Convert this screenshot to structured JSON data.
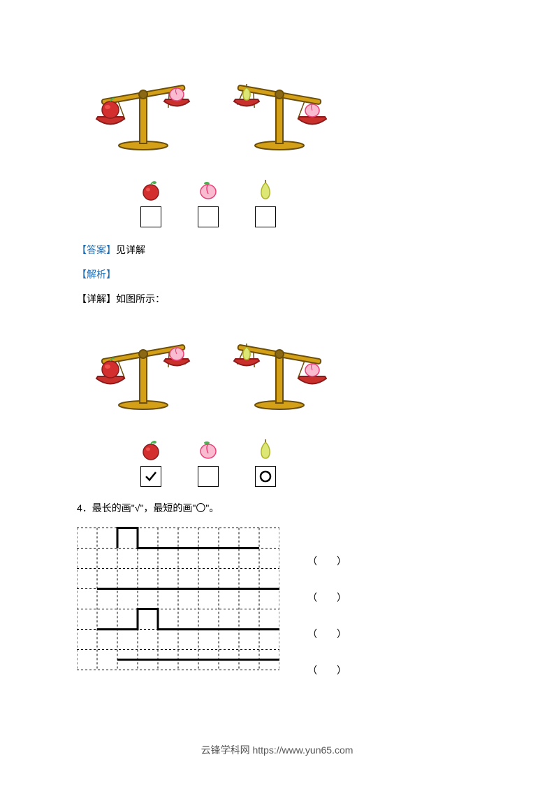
{
  "colors": {
    "scale_stem": "#d4a017",
    "scale_dark": "#8b6914",
    "scale_outline": "#6b4e0a",
    "pan": "#c9302c",
    "pan_outline": "#8b1a1a",
    "apple": "#d32f2f",
    "apple_highlight": "#ef5350",
    "apple_leaf": "#4caf50",
    "peach": "#f8bbd0",
    "peach_dark": "#ec407a",
    "pear": "#dce775",
    "pear_dark": "#afb42b",
    "label_blue": "#1a6eb8"
  },
  "section1": {
    "answer_label": "【答案】",
    "answer_text": "见详解",
    "analysis_label": "【解析】",
    "detail_label": "【详解】",
    "detail_text": "如图所示：",
    "fruits": [
      "apple",
      "peach",
      "pear"
    ],
    "boxes_empty": [
      "",
      "",
      ""
    ],
    "boxes_filled": [
      "✓",
      "",
      "○"
    ]
  },
  "section2": {
    "question_num": "4．",
    "question_text": "最长的画\"√\"，最短的画\"〇\"。",
    "grid": {
      "cols": 10,
      "rows": 7,
      "cell": 29,
      "lines": [
        {
          "path": [
            [
              2,
              1
            ],
            [
              2,
              0
            ],
            [
              3,
              0
            ],
            [
              3,
              1
            ],
            [
              9,
              1
            ]
          ]
        },
        {
          "path": [
            [
              1,
              3
            ],
            [
              10,
              3
            ]
          ]
        },
        {
          "path": [
            [
              1,
              5
            ],
            [
              3,
              5
            ],
            [
              3,
              4
            ],
            [
              4,
              4
            ],
            [
              4,
              5
            ],
            [
              10,
              5
            ]
          ]
        },
        {
          "path": [
            [
              2,
              6.5
            ],
            [
              10,
              6.5
            ]
          ]
        }
      ]
    },
    "brackets": [
      "（　　）",
      "（　　）",
      "（　　）",
      "（　　）"
    ]
  },
  "footer": "云锋学科网 https://www.yun65.com"
}
